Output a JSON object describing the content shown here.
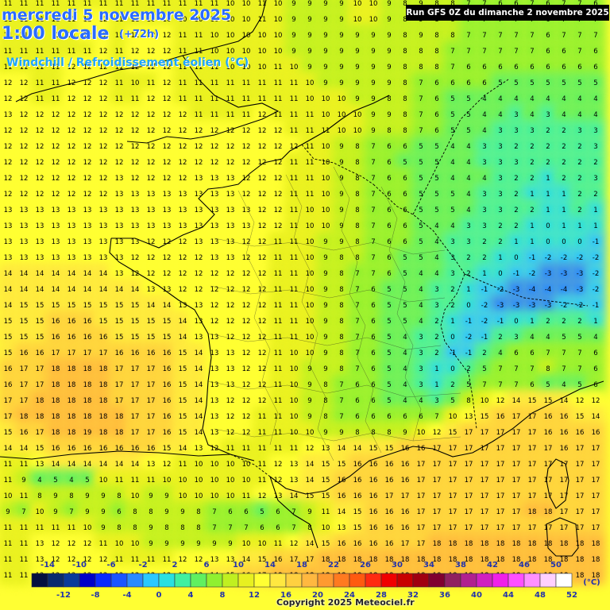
{
  "header": {
    "date_line": "mercredi 5 novembre 2025",
    "time_line": "1:00 locale",
    "lead_time": "(+72h)",
    "parameter": "Windchill / Refroidissement éolien (°C)"
  },
  "run_info": "Run GFS 0Z du dimanche 2 novembre 2025",
  "copyright": "Copyright 2025 Meteociel.fr",
  "legend": {
    "unit": "(°C)",
    "top_labels": [
      "-14",
      "-10",
      "-6",
      "-2",
      "2",
      "6",
      "10",
      "14",
      "18",
      "22",
      "26",
      "30",
      "34",
      "38",
      "42",
      "46",
      "50"
    ],
    "bottom_labels": [
      "-12",
      "-8",
      "-4",
      "0",
      "4",
      "8",
      "12",
      "16",
      "20",
      "24",
      "28",
      "32",
      "36",
      "40",
      "44",
      "48",
      "52"
    ],
    "colors": [
      "#051040",
      "#0a2a6e",
      "#0a3a9a",
      "#0000c8",
      "#0a2aff",
      "#1a55ff",
      "#2a8aff",
      "#2ac8ff",
      "#2ae0e0",
      "#40f0a0",
      "#60f060",
      "#90f030",
      "#c0f020",
      "#e8f020",
      "#ffff33",
      "#ffe840",
      "#ffd040",
      "#ffb840",
      "#ff9a30",
      "#ff7a20",
      "#ff5a10",
      "#ff2a10",
      "#f00000",
      "#c80000",
      "#a00010",
      "#800030",
      "#902060",
      "#b02090",
      "#d020c0",
      "#f020e8",
      "#ff50ff",
      "#ff90ff",
      "#ffd0ff",
      "#ffffff"
    ]
  },
  "grid_values": [
    [
      11,
      11,
      11,
      11,
      11,
      11,
      11,
      11,
      11,
      11,
      11,
      11,
      11,
      11,
      10,
      10,
      11,
      10,
      9,
      9,
      9,
      9,
      10,
      10,
      9,
      8,
      9,
      8,
      8,
      7,
      7,
      6,
      6,
      7,
      6,
      7,
      7,
      6
    ],
    [
      11,
      11,
      11,
      11,
      11,
      12,
      12,
      11,
      11,
      10,
      10,
      10,
      10,
      10,
      10,
      10,
      11,
      10,
      9,
      9,
      9,
      9,
      10,
      10,
      9,
      8,
      9,
      8,
      8,
      7,
      7,
      7,
      7,
      7,
      6,
      7,
      7,
      7
    ],
    [
      11,
      11,
      11,
      11,
      11,
      12,
      12,
      11,
      12,
      12,
      12,
      11,
      11,
      10,
      10,
      10,
      10,
      10,
      9,
      9,
      9,
      9,
      9,
      9,
      9,
      8,
      9,
      8,
      8,
      7,
      7,
      7,
      7,
      7,
      6,
      7,
      7,
      7
    ],
    [
      11,
      11,
      11,
      11,
      11,
      11,
      12,
      11,
      12,
      12,
      12,
      11,
      11,
      10,
      10,
      10,
      10,
      10,
      9,
      9,
      9,
      9,
      9,
      9,
      9,
      8,
      8,
      8,
      7,
      7,
      7,
      7,
      7,
      7,
      6,
      6,
      7,
      6
    ],
    [
      11,
      11,
      11,
      11,
      12,
      12,
      12,
      11,
      12,
      12,
      12,
      11,
      11,
      11,
      10,
      10,
      10,
      11,
      10,
      9,
      9,
      9,
      9,
      9,
      9,
      8,
      8,
      8,
      7,
      6,
      6,
      6,
      6,
      6,
      6,
      6,
      6,
      6
    ],
    [
      12,
      12,
      11,
      11,
      12,
      12,
      12,
      11,
      10,
      11,
      12,
      11,
      11,
      11,
      11,
      11,
      11,
      11,
      11,
      10,
      9,
      9,
      9,
      9,
      9,
      8,
      7,
      6,
      6,
      6,
      6,
      5,
      5,
      5,
      5,
      5,
      5,
      5
    ],
    [
      12,
      12,
      11,
      11,
      12,
      12,
      12,
      11,
      11,
      12,
      12,
      11,
      11,
      11,
      11,
      11,
      11,
      11,
      11,
      10,
      10,
      10,
      9,
      9,
      8,
      8,
      7,
      6,
      5,
      5,
      4,
      4,
      4,
      4,
      4,
      4,
      4,
      4
    ],
    [
      13,
      12,
      12,
      12,
      12,
      12,
      12,
      12,
      12,
      12,
      12,
      12,
      11,
      11,
      11,
      11,
      12,
      11,
      11,
      11,
      10,
      10,
      10,
      9,
      9,
      8,
      7,
      6,
      5,
      5,
      4,
      4,
      3,
      4,
      3,
      4,
      4,
      4
    ],
    [
      12,
      12,
      12,
      12,
      12,
      12,
      12,
      12,
      12,
      12,
      12,
      12,
      12,
      12,
      12,
      12,
      12,
      12,
      11,
      11,
      11,
      10,
      10,
      9,
      8,
      8,
      7,
      6,
      5,
      5,
      4,
      3,
      3,
      3,
      2,
      2,
      3,
      3
    ],
    [
      12,
      12,
      12,
      12,
      12,
      12,
      12,
      12,
      12,
      12,
      12,
      12,
      12,
      12,
      12,
      12,
      12,
      12,
      12,
      11,
      10,
      9,
      8,
      7,
      6,
      6,
      5,
      5,
      4,
      4,
      3,
      3,
      2,
      2,
      2,
      2,
      2,
      3
    ],
    [
      12,
      12,
      12,
      12,
      12,
      12,
      12,
      12,
      12,
      12,
      12,
      12,
      12,
      12,
      12,
      12,
      12,
      12,
      11,
      11,
      10,
      9,
      8,
      7,
      6,
      5,
      5,
      5,
      4,
      4,
      3,
      3,
      3,
      2,
      2,
      2,
      2,
      2
    ],
    [
      12,
      12,
      12,
      12,
      12,
      12,
      12,
      13,
      12,
      12,
      12,
      12,
      13,
      13,
      13,
      12,
      12,
      12,
      11,
      11,
      10,
      9,
      8,
      7,
      6,
      6,
      5,
      5,
      4,
      4,
      4,
      3,
      2,
      2,
      1,
      2,
      2,
      3
    ],
    [
      12,
      12,
      12,
      12,
      12,
      12,
      12,
      13,
      13,
      13,
      13,
      13,
      13,
      13,
      13,
      12,
      12,
      12,
      11,
      11,
      10,
      9,
      8,
      7,
      6,
      6,
      5,
      5,
      5,
      4,
      3,
      3,
      2,
      1,
      1,
      1,
      2,
      2
    ],
    [
      13,
      13,
      13,
      13,
      13,
      13,
      13,
      13,
      13,
      13,
      13,
      13,
      13,
      13,
      13,
      13,
      12,
      12,
      11,
      10,
      10,
      9,
      8,
      7,
      6,
      6,
      5,
      5,
      5,
      4,
      3,
      3,
      2,
      2,
      1,
      1,
      2,
      1
    ],
    [
      13,
      13,
      13,
      13,
      13,
      13,
      13,
      13,
      13,
      13,
      13,
      13,
      13,
      13,
      13,
      13,
      12,
      12,
      11,
      10,
      10,
      9,
      8,
      7,
      6,
      6,
      5,
      4,
      4,
      3,
      3,
      2,
      2,
      1,
      0,
      1,
      1,
      1
    ],
    [
      13,
      13,
      13,
      13,
      13,
      13,
      13,
      13,
      13,
      12,
      12,
      12,
      13,
      13,
      13,
      12,
      12,
      11,
      11,
      10,
      9,
      9,
      8,
      7,
      6,
      6,
      5,
      4,
      3,
      3,
      2,
      2,
      1,
      1,
      0,
      0,
      0,
      -1
    ],
    [
      13,
      13,
      13,
      13,
      13,
      13,
      13,
      13,
      12,
      12,
      12,
      12,
      12,
      13,
      13,
      12,
      12,
      11,
      11,
      10,
      9,
      8,
      8,
      7,
      6,
      5,
      5,
      4,
      3,
      2,
      2,
      1,
      0,
      -1,
      -2,
      -2,
      -2,
      -2
    ],
    [
      14,
      14,
      14,
      14,
      14,
      14,
      14,
      13,
      12,
      12,
      12,
      12,
      12,
      12,
      12,
      12,
      12,
      11,
      11,
      10,
      9,
      8,
      7,
      7,
      6,
      5,
      4,
      4,
      3,
      2,
      1,
      0,
      -1,
      -2,
      -3,
      -3,
      -3,
      -2
    ],
    [
      14,
      14,
      14,
      14,
      14,
      14,
      14,
      14,
      14,
      13,
      13,
      12,
      12,
      12,
      12,
      12,
      12,
      11,
      11,
      10,
      9,
      8,
      7,
      6,
      5,
      5,
      4,
      3,
      2,
      1,
      -1,
      -2,
      -3,
      -4,
      -4,
      -4,
      -3,
      -2
    ],
    [
      14,
      15,
      15,
      15,
      15,
      15,
      15,
      15,
      15,
      14,
      14,
      13,
      13,
      12,
      12,
      12,
      12,
      11,
      11,
      10,
      9,
      8,
      7,
      6,
      5,
      5,
      4,
      3,
      2,
      0,
      -2,
      -3,
      -3,
      -3,
      -3,
      -2,
      -2,
      -1
    ],
    [
      15,
      15,
      15,
      16,
      16,
      16,
      15,
      15,
      15,
      15,
      15,
      14,
      13,
      12,
      12,
      12,
      12,
      11,
      11,
      10,
      9,
      8,
      7,
      6,
      5,
      5,
      4,
      2,
      1,
      -1,
      -2,
      -1,
      0,
      1,
      2,
      2,
      2,
      1
    ],
    [
      15,
      15,
      15,
      16,
      16,
      16,
      16,
      15,
      15,
      15,
      15,
      14,
      13,
      13,
      12,
      12,
      12,
      11,
      11,
      10,
      9,
      8,
      7,
      6,
      5,
      4,
      3,
      2,
      0,
      -2,
      -1,
      2,
      3,
      4,
      4,
      5,
      5,
      4
    ],
    [
      15,
      16,
      16,
      17,
      17,
      17,
      17,
      16,
      16,
      16,
      16,
      15,
      14,
      13,
      13,
      12,
      12,
      11,
      10,
      10,
      9,
      8,
      7,
      6,
      5,
      4,
      3,
      2,
      -1,
      -1,
      2,
      4,
      6,
      6,
      7,
      7,
      7,
      6
    ],
    [
      16,
      17,
      17,
      18,
      18,
      18,
      18,
      17,
      17,
      17,
      16,
      15,
      14,
      13,
      13,
      12,
      12,
      11,
      10,
      9,
      9,
      8,
      7,
      6,
      5,
      4,
      3,
      1,
      0,
      2,
      5,
      7,
      7,
      7,
      8,
      7,
      7,
      6
    ],
    [
      16,
      17,
      17,
      18,
      18,
      18,
      18,
      17,
      17,
      17,
      16,
      15,
      14,
      13,
      13,
      12,
      12,
      11,
      10,
      9,
      8,
      7,
      6,
      6,
      5,
      4,
      3,
      1,
      2,
      5,
      7,
      7,
      7,
      6,
      5,
      4,
      5,
      6
    ],
    [
      17,
      17,
      18,
      18,
      18,
      18,
      18,
      17,
      17,
      17,
      16,
      15,
      14,
      13,
      12,
      12,
      12,
      11,
      10,
      9,
      8,
      7,
      6,
      6,
      5,
      4,
      4,
      3,
      5,
      8,
      10,
      12,
      14,
      15,
      15,
      14,
      12,
      12
    ],
    [
      17,
      18,
      18,
      18,
      18,
      18,
      18,
      18,
      17,
      17,
      16,
      15,
      14,
      13,
      12,
      12,
      11,
      11,
      10,
      9,
      8,
      7,
      6,
      6,
      6,
      6,
      6,
      7,
      10,
      13,
      15,
      16,
      17,
      17,
      16,
      16,
      15,
      14
    ],
    [
      15,
      16,
      17,
      18,
      18,
      19,
      18,
      18,
      17,
      17,
      16,
      15,
      14,
      13,
      12,
      12,
      11,
      11,
      10,
      10,
      9,
      9,
      8,
      8,
      8,
      9,
      10,
      12,
      15,
      17,
      17,
      17,
      17,
      17,
      16,
      16,
      16,
      16
    ],
    [
      14,
      14,
      15,
      16,
      16,
      16,
      16,
      16,
      16,
      16,
      15,
      14,
      13,
      12,
      11,
      11,
      11,
      11,
      11,
      12,
      13,
      14,
      14,
      15,
      15,
      16,
      16,
      17,
      17,
      17,
      17,
      17,
      17,
      17,
      17,
      16,
      17,
      17
    ],
    [
      11,
      11,
      13,
      14,
      14,
      14,
      14,
      14,
      14,
      13,
      12,
      11,
      10,
      10,
      10,
      10,
      11,
      12,
      13,
      14,
      15,
      15,
      16,
      16,
      16,
      16,
      17,
      17,
      17,
      17,
      17,
      17,
      17,
      17,
      17,
      17,
      17,
      17
    ],
    [
      11,
      9,
      4,
      5,
      4,
      5,
      10,
      11,
      11,
      11,
      10,
      10,
      10,
      10,
      10,
      10,
      11,
      12,
      13,
      14,
      15,
      16,
      16,
      16,
      16,
      16,
      17,
      17,
      17,
      17,
      17,
      17,
      17,
      17,
      17,
      17,
      17,
      17
    ],
    [
      10,
      11,
      8,
      9,
      8,
      9,
      9,
      8,
      10,
      9,
      9,
      10,
      10,
      10,
      10,
      11,
      12,
      13,
      14,
      15,
      15,
      16,
      16,
      16,
      17,
      17,
      17,
      17,
      17,
      17,
      17,
      17,
      17,
      17,
      17,
      17,
      17,
      17
    ],
    [
      9,
      7,
      10,
      9,
      7,
      9,
      9,
      6,
      8,
      8,
      9,
      9,
      8,
      7,
      6,
      6,
      5,
      6,
      7,
      9,
      11,
      14,
      15,
      16,
      16,
      16,
      17,
      17,
      17,
      17,
      17,
      17,
      17,
      18,
      18,
      17,
      17,
      17
    ],
    [
      11,
      11,
      11,
      11,
      11,
      10,
      9,
      8,
      8,
      9,
      8,
      8,
      8,
      7,
      7,
      7,
      6,
      6,
      7,
      8,
      10,
      13,
      15,
      16,
      16,
      16,
      17,
      17,
      17,
      17,
      17,
      17,
      17,
      17,
      17,
      17,
      17,
      17
    ],
    [
      11,
      11,
      13,
      12,
      12,
      12,
      11,
      10,
      10,
      9,
      9,
      9,
      9,
      9,
      9,
      10,
      10,
      11,
      12,
      14,
      15,
      16,
      16,
      16,
      16,
      17,
      17,
      18,
      18,
      18,
      18,
      18,
      18,
      18,
      18,
      18,
      18,
      18
    ],
    [
      11,
      11,
      13,
      12,
      12,
      12,
      12,
      11,
      11,
      11,
      11,
      12,
      12,
      13,
      13,
      14,
      15,
      16,
      17,
      17,
      18,
      18,
      18,
      18,
      18,
      18,
      18,
      18,
      18,
      18,
      18,
      18,
      18,
      18,
      18,
      18,
      18,
      18
    ],
    [
      11,
      11,
      12,
      12,
      12,
      12,
      12,
      12,
      12,
      12,
      12,
      13,
      13,
      14,
      15,
      16,
      17,
      18,
      18,
      18,
      18,
      18,
      18,
      18,
      18,
      18,
      18,
      18,
      18,
      18,
      18,
      18,
      18,
      18,
      18,
      18,
      18,
      18
    ]
  ]
}
